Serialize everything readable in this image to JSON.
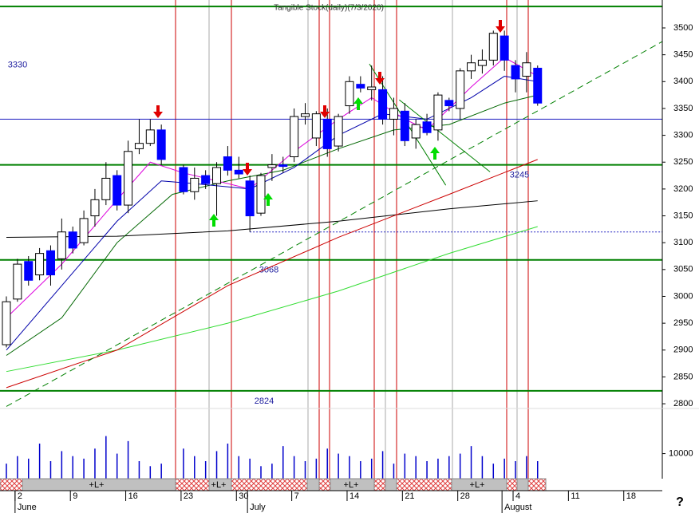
{
  "chart_data": {
    "type": "candlestick",
    "title": "Tangible Stock(daily)(7/3/2020)",
    "open": [
      2910,
      2995,
      3065,
      3040,
      3085,
      3070,
      3120,
      3100,
      3150,
      3180,
      3225,
      3170,
      3275,
      3285,
      3310,
      null,
      3240,
      3195,
      3225,
      3210,
      3260,
      3235,
      3215,
      3155,
      3240,
      3245,
      3260,
      3335,
      3295,
      3330,
      3280,
      3355,
      3395,
      3385,
      3385,
      3330,
      3345,
      3295,
      3325,
      3310,
      3365,
      3350,
      3420,
      3430,
      3440,
      3485,
      3430,
      3410,
      3425
    ],
    "high": [
      3000,
      3070,
      3075,
      3090,
      3095,
      3145,
      3130,
      3160,
      3200,
      3250,
      3235,
      3290,
      3330,
      3330,
      3320,
      null,
      3245,
      3240,
      3235,
      3250,
      3280,
      3260,
      3225,
      3230,
      3265,
      3260,
      3350,
      3360,
      3345,
      3350,
      3340,
      3410,
      3410,
      3430,
      3410,
      3370,
      3360,
      3330,
      3340,
      3380,
      3370,
      3425,
      3450,
      3460,
      3495,
      3495,
      3440,
      3455,
      3430
    ],
    "low": [
      2905,
      2990,
      3020,
      3030,
      3020,
      3050,
      3080,
      3095,
      3130,
      3170,
      3160,
      3155,
      3265,
      3280,
      3245,
      null,
      3190,
      3180,
      3200,
      3150,
      3225,
      3220,
      3120,
      3150,
      3215,
      3230,
      3250,
      3320,
      3280,
      3260,
      3270,
      3340,
      3380,
      3365,
      3320,
      3300,
      3280,
      3275,
      3300,
      3290,
      3345,
      3330,
      3405,
      3415,
      3430,
      3420,
      3380,
      3380,
      3355
    ],
    "close": [
      2990,
      3060,
      3030,
      3080,
      3040,
      3120,
      3090,
      3145,
      3180,
      3220,
      3170,
      3270,
      3285,
      3310,
      3255,
      null,
      3195,
      3220,
      3210,
      3240,
      3235,
      3228,
      3150,
      3225,
      3245,
      3242,
      3335,
      3340,
      3340,
      3275,
      3335,
      3400,
      3388,
      3390,
      3330,
      3350,
      3290,
      3320,
      3305,
      3375,
      3355,
      3420,
      3435,
      3440,
      3490,
      3440,
      3405,
      3435,
      3360
    ],
    "up_color": "#ffffff",
    "down_color": "#0000ff",
    "ylim": [
      2790,
      3552
    ],
    "yticks": [
      2800,
      2850,
      2900,
      2950,
      3000,
      3050,
      3100,
      3150,
      3200,
      3250,
      3300,
      3350,
      3400,
      3450,
      3500
    ],
    "xticks": [
      {
        "value": 1,
        "label": "2"
      },
      {
        "value": 6,
        "label": "9"
      },
      {
        "value": 11,
        "label": "16"
      },
      {
        "value": 16,
        "label": "23"
      },
      {
        "value": 21,
        "label": "30"
      },
      {
        "value": 26,
        "label": "7"
      },
      {
        "value": 31,
        "label": "14"
      },
      {
        "value": 36,
        "label": "21"
      },
      {
        "value": 41,
        "label": "28"
      },
      {
        "value": 46,
        "label": "4"
      },
      {
        "value": 51,
        "label": "11"
      },
      {
        "value": 56,
        "label": "18"
      }
    ],
    "months": [
      {
        "value": 1,
        "label": "June"
      },
      {
        "value": 22,
        "label": "July"
      },
      {
        "value": 45,
        "label": "August"
      }
    ],
    "volume": {
      "values": [
        6000,
        9000,
        8000,
        14000,
        7000,
        11000,
        9000,
        8000,
        12000,
        17000,
        10000,
        15000,
        7000,
        5000,
        6000,
        null,
        12000,
        9000,
        7000,
        11000,
        14000,
        9000,
        8000,
        5000,
        6000,
        13000,
        9000,
        7000,
        8000,
        12000,
        10000,
        9000,
        7000,
        8000,
        11000,
        6000,
        10000,
        9000,
        7000,
        8000,
        9000,
        10000,
        13000,
        9000,
        6000,
        8000,
        7000,
        9000,
        7000
      ],
      "color": "#0000cc",
      "ylim": [
        0,
        28000
      ],
      "yticks": [
        10000
      ]
    },
    "overlays": [
      {
        "color": "#000000",
        "x": [
          0,
          10,
          20,
          30,
          40,
          48
        ],
        "values": [
          3110,
          3112,
          3122,
          3140,
          3163,
          3178
        ]
      },
      {
        "color": "#33dd33",
        "x": [
          0,
          10,
          20,
          30,
          40,
          48
        ],
        "values": [
          2860,
          2900,
          2950,
          3010,
          3080,
          3130
        ]
      },
      {
        "color": "#cc0000",
        "x": [
          0,
          10,
          20,
          30,
          40,
          48
        ],
        "values": [
          2830,
          2900,
          3020,
          3110,
          3190,
          3255
        ]
      },
      {
        "color": "#006600",
        "x": [
          0,
          5,
          10,
          15,
          20,
          25,
          30,
          35,
          40,
          45,
          48
        ],
        "values": [
          2890,
          2960,
          3100,
          3190,
          3215,
          3235,
          3275,
          3310,
          3320,
          3360,
          3375
        ]
      },
      {
        "color": "#0000aa",
        "x": [
          0,
          5,
          10,
          14,
          17,
          22,
          26,
          30,
          34,
          38,
          42,
          45,
          48
        ],
        "values": [
          2900,
          3020,
          3140,
          3215,
          3210,
          3200,
          3240,
          3300,
          3340,
          3330,
          3370,
          3410,
          3400
        ]
      },
      {
        "color": "#dd00dd",
        "x": [
          0,
          5,
          10,
          13,
          16,
          22,
          26,
          30,
          33,
          36,
          38,
          42,
          45,
          48
        ],
        "values": [
          2960,
          3060,
          3180,
          3250,
          3230,
          3200,
          3270,
          3330,
          3370,
          3330,
          3310,
          3390,
          3445,
          3410
        ]
      }
    ],
    "trendlines": [
      {
        "color": "#008000",
        "dashed": true,
        "x": [
          0,
          59.3
        ],
        "values": [
          2795,
          3475
        ]
      },
      {
        "color": "#008000",
        "dashed": false,
        "x": [
          32.8,
          39.7
        ],
        "values": [
          3433,
          3207
        ]
      },
      {
        "color": "#008000",
        "dashed": false,
        "x": [
          35.5,
          43.7
        ],
        "values": [
          3366,
          3232
        ]
      }
    ],
    "levels": [
      {
        "value": 3330,
        "color": "#2020c0"
      },
      {
        "value": 3245,
        "color": "#008000"
      },
      {
        "value": 3068,
        "color": "#008000"
      },
      {
        "value": 2824,
        "color": "#008000"
      }
    ],
    "ceiling": 3540,
    "dotted_support": {
      "value": 3120,
      "x": 22
    },
    "band_labels": [
      "+L+",
      "+L+",
      "+L+",
      "+L+"
    ],
    "help": "?"
  }
}
